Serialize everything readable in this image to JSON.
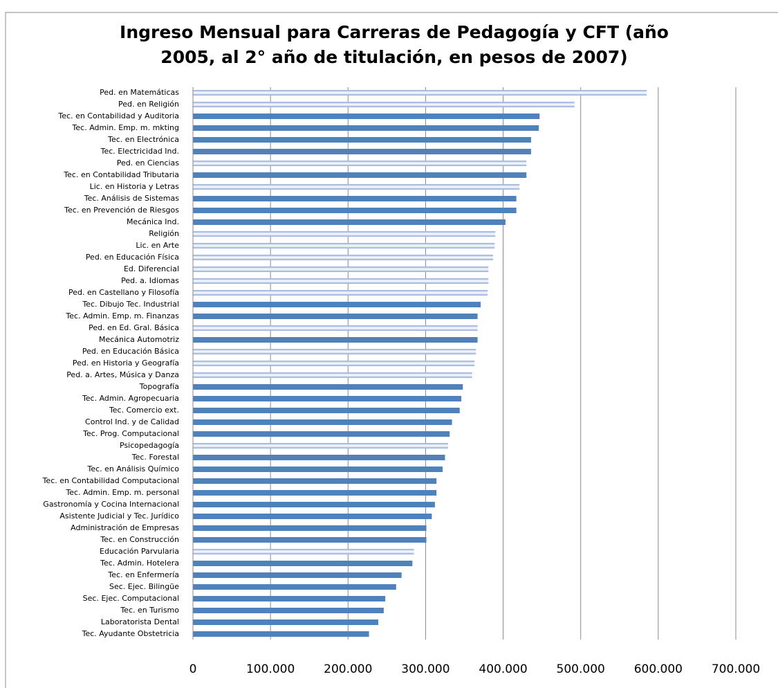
{
  "chart_data": {
    "type": "bar",
    "orientation": "horizontal",
    "title": [
      "Ingreso Mensual para Carreras de Pedagogía y CFT (año",
      "2005, al 2° año de titulación, en pesos de 2007)"
    ],
    "categories": [
      "Ped. en Matemáticas",
      "Ped. en Religión",
      "Tec. en Contabilidad y Auditoria",
      "Tec. Admin. Emp. m. mkting",
      "Tec. en Electrónica",
      "Tec. Electricidad Ind.",
      "Ped. en Ciencias",
      "Tec. en Contabilidad Tributaria",
      "Lic. en Historia y Letras",
      "Tec. Análisis de Sistemas",
      "Tec. en Prevención de Riesgos",
      "Mecánica Ind.",
      "Religión",
      "Lic. en Arte",
      "Ped. en Educación Física",
      "Ed. Diferencial",
      "Ped. a. Idiomas",
      "Ped. en Castellano y Filosofía",
      "Tec. Dibujo Tec. Industrial",
      "Tec. Admin. Emp. m. Finanzas",
      "Ped. en Ed. Gral. Básica",
      "Mecánica Automotriz",
      "Ped. en Educación Básica",
      "Ped. en Historia y Geografía",
      "Ped. a. Artes, Música y Danza",
      "Topografía",
      "Tec. Admin. Agropecuaria",
      "Tec. Comercio ext.",
      "Control Ind. y de Calidad",
      "Tec. Prog. Computacional",
      "Psicopedagogía",
      "Tec. Forestal",
      "Tec. en Análisis Químico",
      "Tec. en Contabilidad Computacional",
      "Tec. Admin. Emp. m. personal",
      "Gastronomía y Cocina Internacional",
      "Asistente Judicial y Tec. Jurídico",
      "Administración de Empresas",
      "Tec. en Construcción",
      "Educación Parvularia",
      "Tec. Admin. Hotelera",
      "Tec. en Enfermería",
      "Sec. Ejec. Bilingüe",
      "Sec. Ejec. Computacional",
      "Tec. en Turismo",
      "Laboratorista Dental",
      "Tec. Ayudante Obstetricia"
    ],
    "values": [
      585000,
      492000,
      447000,
      446000,
      436000,
      436000,
      430000,
      430000,
      421000,
      417000,
      417000,
      403000,
      390000,
      389000,
      387000,
      381000,
      381000,
      380000,
      371000,
      367000,
      367000,
      367000,
      365000,
      363000,
      360000,
      348000,
      346000,
      344000,
      334000,
      331000,
      329000,
      325000,
      322000,
      314000,
      314000,
      312000,
      308000,
      301000,
      301000,
      285000,
      283000,
      269000,
      262000,
      248000,
      246000,
      239000,
      227000
    ],
    "color": "#4f81bd",
    "colors": [
      "#8eaad8",
      "#8eaad8",
      "#4f81bd",
      "#4f81bd",
      "#4f81bd",
      "#4f81bd",
      "#8eaad8",
      "#4f81bd",
      "#8eaad8",
      "#4f81bd",
      "#4f81bd",
      "#4f81bd",
      "#8eaad8",
      "#8eaad8",
      "#8eaad8",
      "#8eaad8",
      "#8eaad8",
      "#8eaad8",
      "#4f81bd",
      "#4f81bd",
      "#8eaad8",
      "#4f81bd",
      "#8eaad8",
      "#8eaad8",
      "#8eaad8",
      "#4f81bd",
      "#4f81bd",
      "#4f81bd",
      "#4f81bd",
      "#4f81bd",
      "#8eaad8",
      "#4f81bd",
      "#4f81bd",
      "#4f81bd",
      "#4f81bd",
      "#4f81bd",
      "#4f81bd",
      "#4f81bd",
      "#4f81bd",
      "#8eaad8",
      "#4f81bd",
      "#4f81bd",
      "#4f81bd",
      "#4f81bd",
      "#4f81bd",
      "#4f81bd",
      "#4f81bd"
    ],
    "xlim": [
      0,
      700000
    ],
    "xticks": [
      0,
      {
        "value": 100000,
        "label": "100.000"
      },
      {
        "value": 200000,
        "label": "200.000"
      },
      {
        "value": 300000,
        "label": "300.000"
      },
      {
        "value": 400000,
        "label": "400.000"
      },
      {
        "value": 500000,
        "label": "500.000"
      },
      {
        "value": 600000,
        "label": "600.000"
      },
      {
        "value": 700000,
        "label": "700.000"
      }
    ],
    "grid": true
  }
}
